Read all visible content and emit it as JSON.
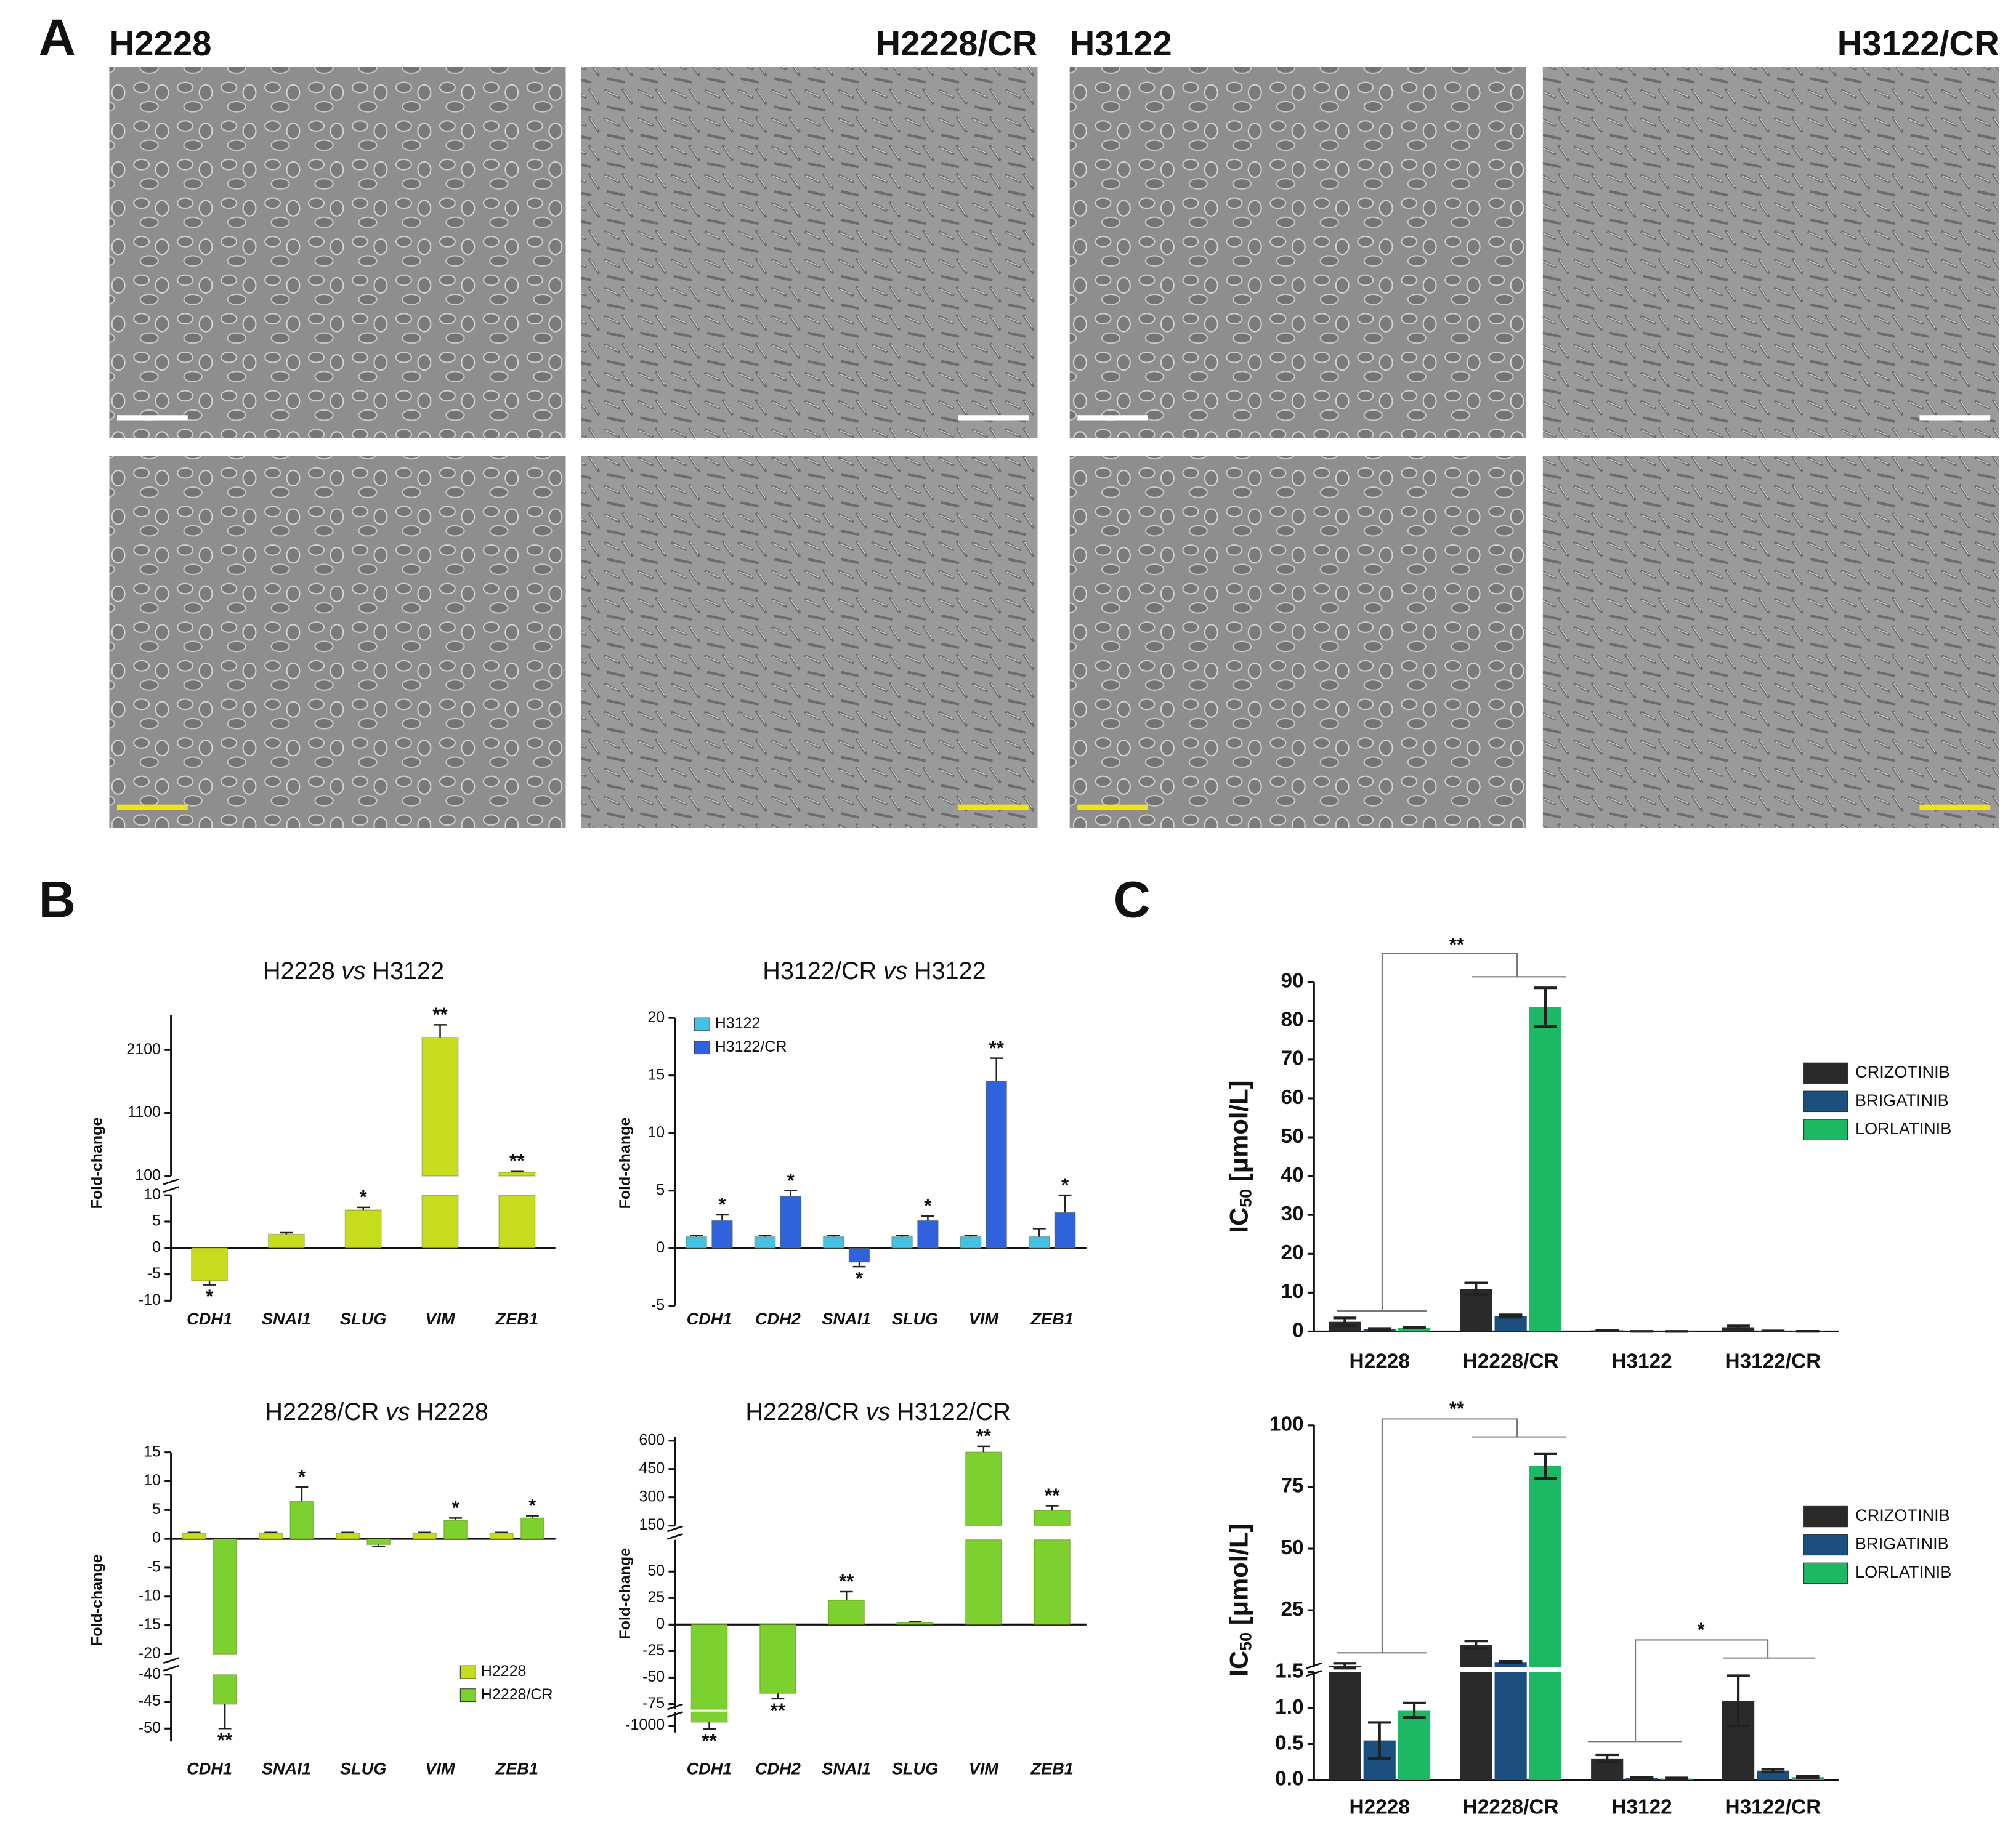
{
  "panel_labels": [
    "A",
    "B",
    "C"
  ],
  "micrograph_labels": [
    "H2228",
    "H2228/CR",
    "H3122",
    "H3122/CR"
  ],
  "chart_data": [
    {
      "type": "bar",
      "title": [
        "H2228",
        "vs",
        "H3122"
      ],
      "ylabel": "Fold-change",
      "categories": [
        "CDH1",
        "SNAI1",
        "SLUG",
        "VIM",
        "ZEB1"
      ],
      "color": "#c8dc1e",
      "values": [
        -6.2,
        2.6,
        7.2,
        2300,
        160
      ],
      "errors": [
        0.8,
        0.3,
        0.5,
        200,
        20
      ],
      "significance": [
        "*",
        null,
        "*",
        "**",
        "**"
      ],
      "error_style": "outward",
      "segments": [
        {
          "ylim": [
            100,
            2650
          ],
          "yticks": [
            100,
            1100,
            2100
          ]
        },
        {
          "ylim": [
            -10,
            10
          ],
          "yticks": [
            -10,
            -5,
            0,
            5,
            10
          ]
        }
      ]
    },
    {
      "type": "bar",
      "title": [
        "H3122/CR",
        "vs",
        "H3122"
      ],
      "ylabel": "Fold-change",
      "categories": [
        "CDH1",
        "CDH2",
        "SNAI1",
        "SLUG",
        "VIM",
        "ZEB1"
      ],
      "error_style": "outward",
      "series": [
        {
          "name": "H3122",
          "color": "#45c1e6",
          "values": [
            1,
            1,
            1,
            1,
            1,
            1
          ],
          "errors": [
            0.1,
            0.1,
            0.1,
            0.1,
            0.1,
            0.7
          ]
        },
        {
          "name": "H3122/CR",
          "color": "#2f62dc",
          "values": [
            2.4,
            4.5,
            -1.2,
            2.4,
            14.5,
            3.1
          ],
          "errors": [
            0.5,
            0.5,
            0.4,
            0.4,
            2,
            1.5
          ],
          "significance": [
            "*",
            "*",
            "*",
            "*",
            "**",
            "*"
          ]
        }
      ],
      "ylim": [
        -5,
        20
      ],
      "yticks": [
        -5,
        0,
        5,
        10,
        15,
        20
      ]
    },
    {
      "type": "bar",
      "title": [
        "H2228/CR",
        "vs",
        "H2228"
      ],
      "ylabel": "Fold-change",
      "categories": [
        "CDH1",
        "SNAI1",
        "SLUG",
        "VIM",
        "ZEB1"
      ],
      "error_style": "outward",
      "series": [
        {
          "name": "H2228",
          "color": "#c8dc1e",
          "values": [
            1,
            1,
            1,
            1,
            1
          ],
          "errors": [
            0.1,
            0.1,
            0.1,
            0.1,
            0.1
          ]
        },
        {
          "name": "H2228/CR",
          "color": "#7dd12f",
          "values": [
            -45.5,
            6.5,
            -1,
            3.2,
            3.6
          ],
          "errors": [
            4.5,
            2.5,
            0.3,
            0.4,
            0.4
          ],
          "significance": [
            "**",
            "*",
            null,
            "*",
            "*"
          ]
        }
      ],
      "segments": [
        {
          "ylim": [
            -20,
            15
          ],
          "yticks": [
            -20,
            -15,
            -10,
            -5,
            0,
            5,
            10,
            15
          ]
        },
        {
          "ylim": [
            -52.4,
            -40
          ],
          "yticks": [
            -50,
            -45,
            -40
          ]
        }
      ]
    },
    {
      "type": "bar",
      "title": [
        "H2228/CR",
        "vs",
        "H3122/CR"
      ],
      "ylabel": "Fold-change",
      "categories": [
        "CDH1",
        "CDH2",
        "SNAI1",
        "SLUG",
        "VIM",
        "ZEB1"
      ],
      "color": "#7dd12f",
      "values": [
        -990,
        -65,
        23,
        2,
        540,
        230
      ],
      "errors": [
        20,
        5,
        8,
        1,
        30,
        25
      ],
      "significance": [
        "**",
        "**",
        "**",
        null,
        "**",
        "**"
      ],
      "error_style": "outward",
      "segments": [
        {
          "ylim": [
            150,
            620
          ],
          "yticks": [
            150,
            300,
            450,
            600
          ]
        },
        {
          "ylim": [
            -80,
            80
          ],
          "yticks": [
            -75,
            -50,
            -25,
            0,
            25,
            50
          ]
        },
        {
          "ylim": [
            -1020,
            -960
          ],
          "yticks": [
            -1000
          ]
        }
      ]
    },
    {
      "type": "bar",
      "ylabel": {
        "text": "IC",
        "subscript": "50",
        "suffix": " [μmol/L]"
      },
      "categories": [
        "H2228",
        "H2228/CR",
        "H3122",
        "H3122/CR"
      ],
      "error_style": "both",
      "series": [
        {
          "name": "CRIZOTINIB",
          "color": "#2a2a2a",
          "values": [
            2.5,
            11,
            0.3,
            1.1
          ],
          "errors": [
            1,
            1.5,
            0.05,
            0.35
          ]
        },
        {
          "name": "BRIGATINIB",
          "color": "#1c4e7e",
          "values": [
            0.55,
            4,
            0.03,
            0.13
          ],
          "errors": [
            0.25,
            0.3,
            0.01,
            0.02
          ]
        },
        {
          "name": "LORLATINIB",
          "color": "#1db864",
          "values": [
            0.97,
            83.5,
            0.02,
            0.04
          ],
          "errors": [
            0.1,
            5,
            0.01,
            0.01
          ]
        }
      ],
      "ylim": [
        0,
        90
      ],
      "yticks": [
        0,
        10,
        20,
        30,
        40,
        50,
        60,
        70,
        80,
        90
      ],
      "annotations": [
        "**"
      ]
    },
    {
      "type": "bar",
      "ylabel": {
        "text": "IC",
        "subscript": "50",
        "suffix": " [μmol/L]"
      },
      "categories": [
        "H2228",
        "H2228/CR",
        "H3122",
        "H3122/CR"
      ],
      "error_style": "both",
      "series": [
        {
          "name": "CRIZOTINIB",
          "color": "#2a2a2a",
          "values": [
            2.5,
            11,
            0.3,
            1.1
          ],
          "errors": [
            1,
            1.5,
            0.05,
            0.35
          ]
        },
        {
          "name": "BRIGATINIB",
          "color": "#1c4e7e",
          "values": [
            0.55,
            4,
            0.03,
            0.13
          ],
          "errors": [
            0.25,
            0.3,
            0.01,
            0.02
          ]
        },
        {
          "name": "LORLATINIB",
          "color": "#1db864",
          "values": [
            0.97,
            83.5,
            0.02,
            0.04
          ],
          "errors": [
            0.1,
            5,
            0.01,
            0.01
          ]
        }
      ],
      "segments": [
        {
          "ylim": [
            2,
            100
          ],
          "yticks": [
            25,
            50,
            75,
            100
          ]
        },
        {
          "ylim": [
            0,
            1.5
          ],
          "yticks": [
            {
              "value": 0,
              "label": "0.0"
            },
            0.5,
            {
              "value": 1,
              "label": "1.0"
            },
            1.5
          ]
        }
      ],
      "annotations": [
        "**",
        "*"
      ]
    }
  ]
}
